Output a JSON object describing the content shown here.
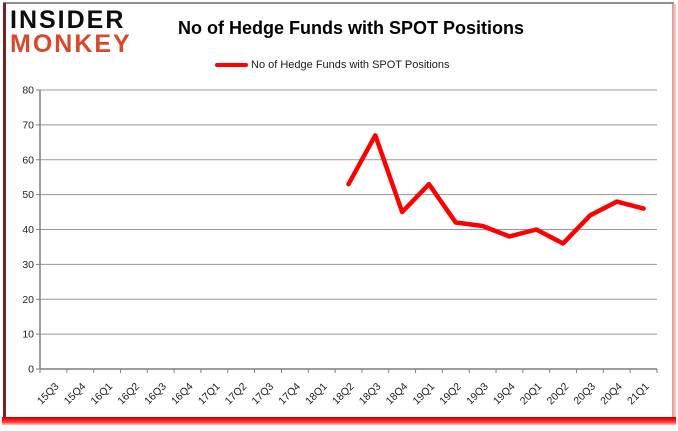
{
  "logo": {
    "line1": "INSIDER",
    "line2": "MONKEY"
  },
  "header": {
    "title": "No of Hedge Funds with SPOT Positions"
  },
  "legend": {
    "label": "No of Hedge Funds with SPOT Positions",
    "swatch_color": "#fe0000"
  },
  "chart_data": {
    "type": "line",
    "title": "No of Hedge Funds with SPOT Positions",
    "categories": [
      "15Q3",
      "15Q4",
      "16Q1",
      "16Q2",
      "16Q3",
      "16Q4",
      "17Q1",
      "17Q2",
      "17Q3",
      "17Q4",
      "18Q1",
      "18Q2",
      "18Q3",
      "18Q4",
      "19Q1",
      "19Q2",
      "19Q3",
      "19Q4",
      "20Q1",
      "20Q2",
      "20Q3",
      "20Q4",
      "21Q1"
    ],
    "series": [
      {
        "name": "No of Hedge Funds with SPOT Positions",
        "color": "#fe0000",
        "values": [
          null,
          null,
          null,
          null,
          null,
          null,
          null,
          null,
          null,
          null,
          null,
          53,
          67,
          45,
          53,
          42,
          41,
          38,
          40,
          36,
          44,
          48,
          46
        ]
      }
    ],
    "xlabel": "",
    "ylabel": "",
    "ylim": [
      0,
      80
    ],
    "ytick_step": 10,
    "grid": true,
    "legend_position": "top",
    "colors": {
      "gridline": "#979797",
      "axis": "#7f7f7f",
      "tick_label": "#1f1f1f"
    }
  }
}
